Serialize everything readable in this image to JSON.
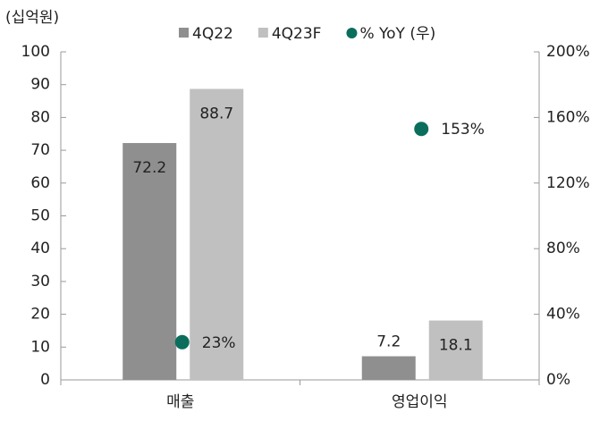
{
  "chart_data": {
    "type": "bar",
    "y_label": "(십억원)",
    "categories": [
      "매출",
      "영업이익"
    ],
    "series": [
      {
        "name": "4Q22",
        "color": "#8f8f8f",
        "values": [
          72.2,
          7.2
        ]
      },
      {
        "name": "4Q23F",
        "color": "#c0c0c0",
        "values": [
          88.7,
          18.1
        ]
      },
      {
        "name": "% YoY (우)",
        "color": "#0b6e5c",
        "type": "scatter",
        "axis": "y2",
        "values": [
          23,
          153
        ],
        "value_labels": [
          "23%",
          "153%"
        ]
      }
    ],
    "ylim": [
      0,
      100
    ],
    "yticks": [
      0,
      10,
      20,
      30,
      40,
      50,
      60,
      70,
      80,
      90,
      100
    ],
    "y2lim": [
      0,
      200
    ],
    "y2ticks": [
      {
        "value": 0,
        "label": "0%"
      },
      {
        "value": 40,
        "label": "40%"
      },
      {
        "value": 80,
        "label": "80%"
      },
      {
        "value": 120,
        "label": "120%"
      },
      {
        "value": 160,
        "label": "160%"
      },
      {
        "value": 200,
        "label": "200%"
      }
    ],
    "legend": "top",
    "grid": false
  }
}
